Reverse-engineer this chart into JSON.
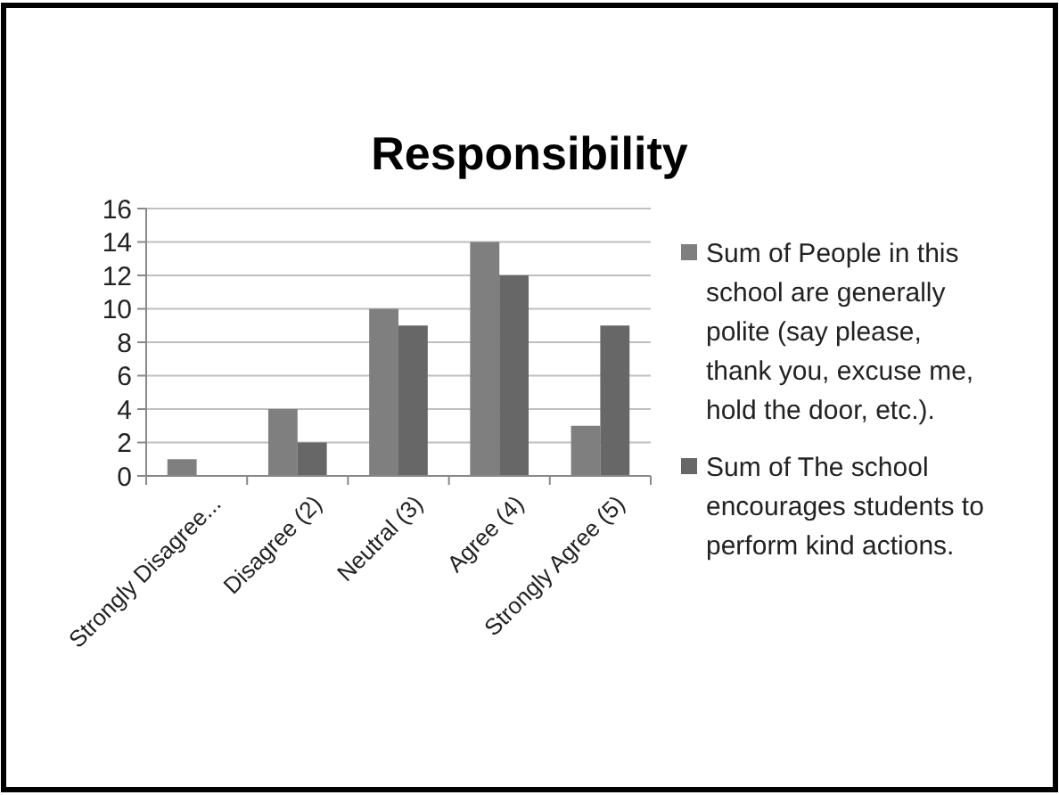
{
  "chart_data": {
    "type": "bar",
    "title": "Responsibility",
    "categories": [
      "Strongly Disagree...",
      "Disagree (2)",
      "Neutral (3)",
      "Agree (4)",
      "Strongly Agree (5)"
    ],
    "series": [
      {
        "name": "Sum of People in this school are generally polite (say please, thank you, excuse me, hold the door, etc.).",
        "color": "#7f7f7f",
        "values": [
          1,
          4,
          10,
          14,
          3
        ]
      },
      {
        "name": "Sum of The school encourages students to perform kind actions.",
        "color": "#676767",
        "values": [
          0,
          2,
          9,
          12,
          9
        ]
      }
    ],
    "ylim": [
      0,
      16
    ],
    "yticks": [
      0,
      2,
      4,
      6,
      8,
      10,
      12,
      14,
      16
    ],
    "grid": "y",
    "legend": "right"
  }
}
